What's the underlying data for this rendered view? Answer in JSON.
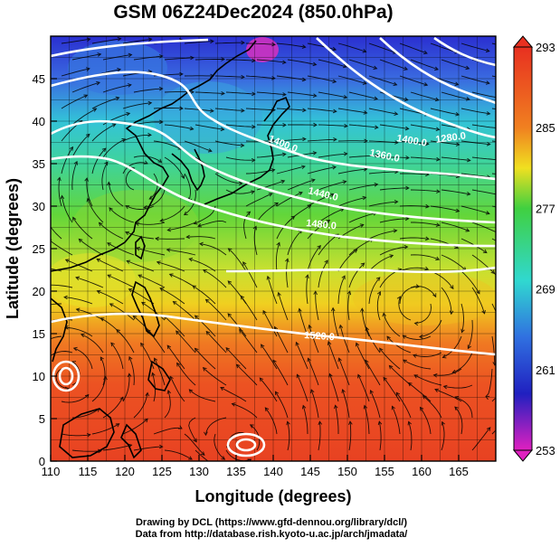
{
  "title": "GSM 06Z24Dec2024 (850.0hPa)",
  "x_axis": {
    "label": "Longitude (degrees)",
    "range": [
      110,
      170
    ],
    "ticks": [
      "110",
      "115",
      "120",
      "125",
      "130",
      "135",
      "140",
      "145",
      "150",
      "155",
      "160",
      "165"
    ]
  },
  "y_axis": {
    "label": "Latitude  (degrees)",
    "range": [
      0,
      50
    ],
    "ticks": [
      "0",
      "5",
      "10",
      "15",
      "20",
      "25",
      "30",
      "35",
      "40",
      "45"
    ]
  },
  "colorbar": {
    "range": [
      253,
      293
    ],
    "labels": [
      "293",
      "285",
      "277",
      "269",
      "261",
      "253"
    ]
  },
  "contours": [
    {
      "label": "1400.0"
    },
    {
      "label": "1400.0"
    },
    {
      "label": "1360.0"
    },
    {
      "label": "1280.0"
    },
    {
      "label": "1440.0"
    },
    {
      "label": "1480.0"
    },
    {
      "label": "1520.0"
    }
  ],
  "credits": [
    "Drawing by DCL (https://www.gfd-dennou.org/library/dcl/)",
    "Data from http://database.rish.kyoto-u.ac.jp/arch/jmadata/"
  ],
  "colors": {
    "cold": "#e020c0",
    "blue": "#2030d0",
    "cyan": "#30d8d0",
    "green": "#40d040",
    "yellow": "#f0e020",
    "orange": "#f07020",
    "red": "#e83020",
    "contour": "#ffffff",
    "streamline": "#000000"
  }
}
